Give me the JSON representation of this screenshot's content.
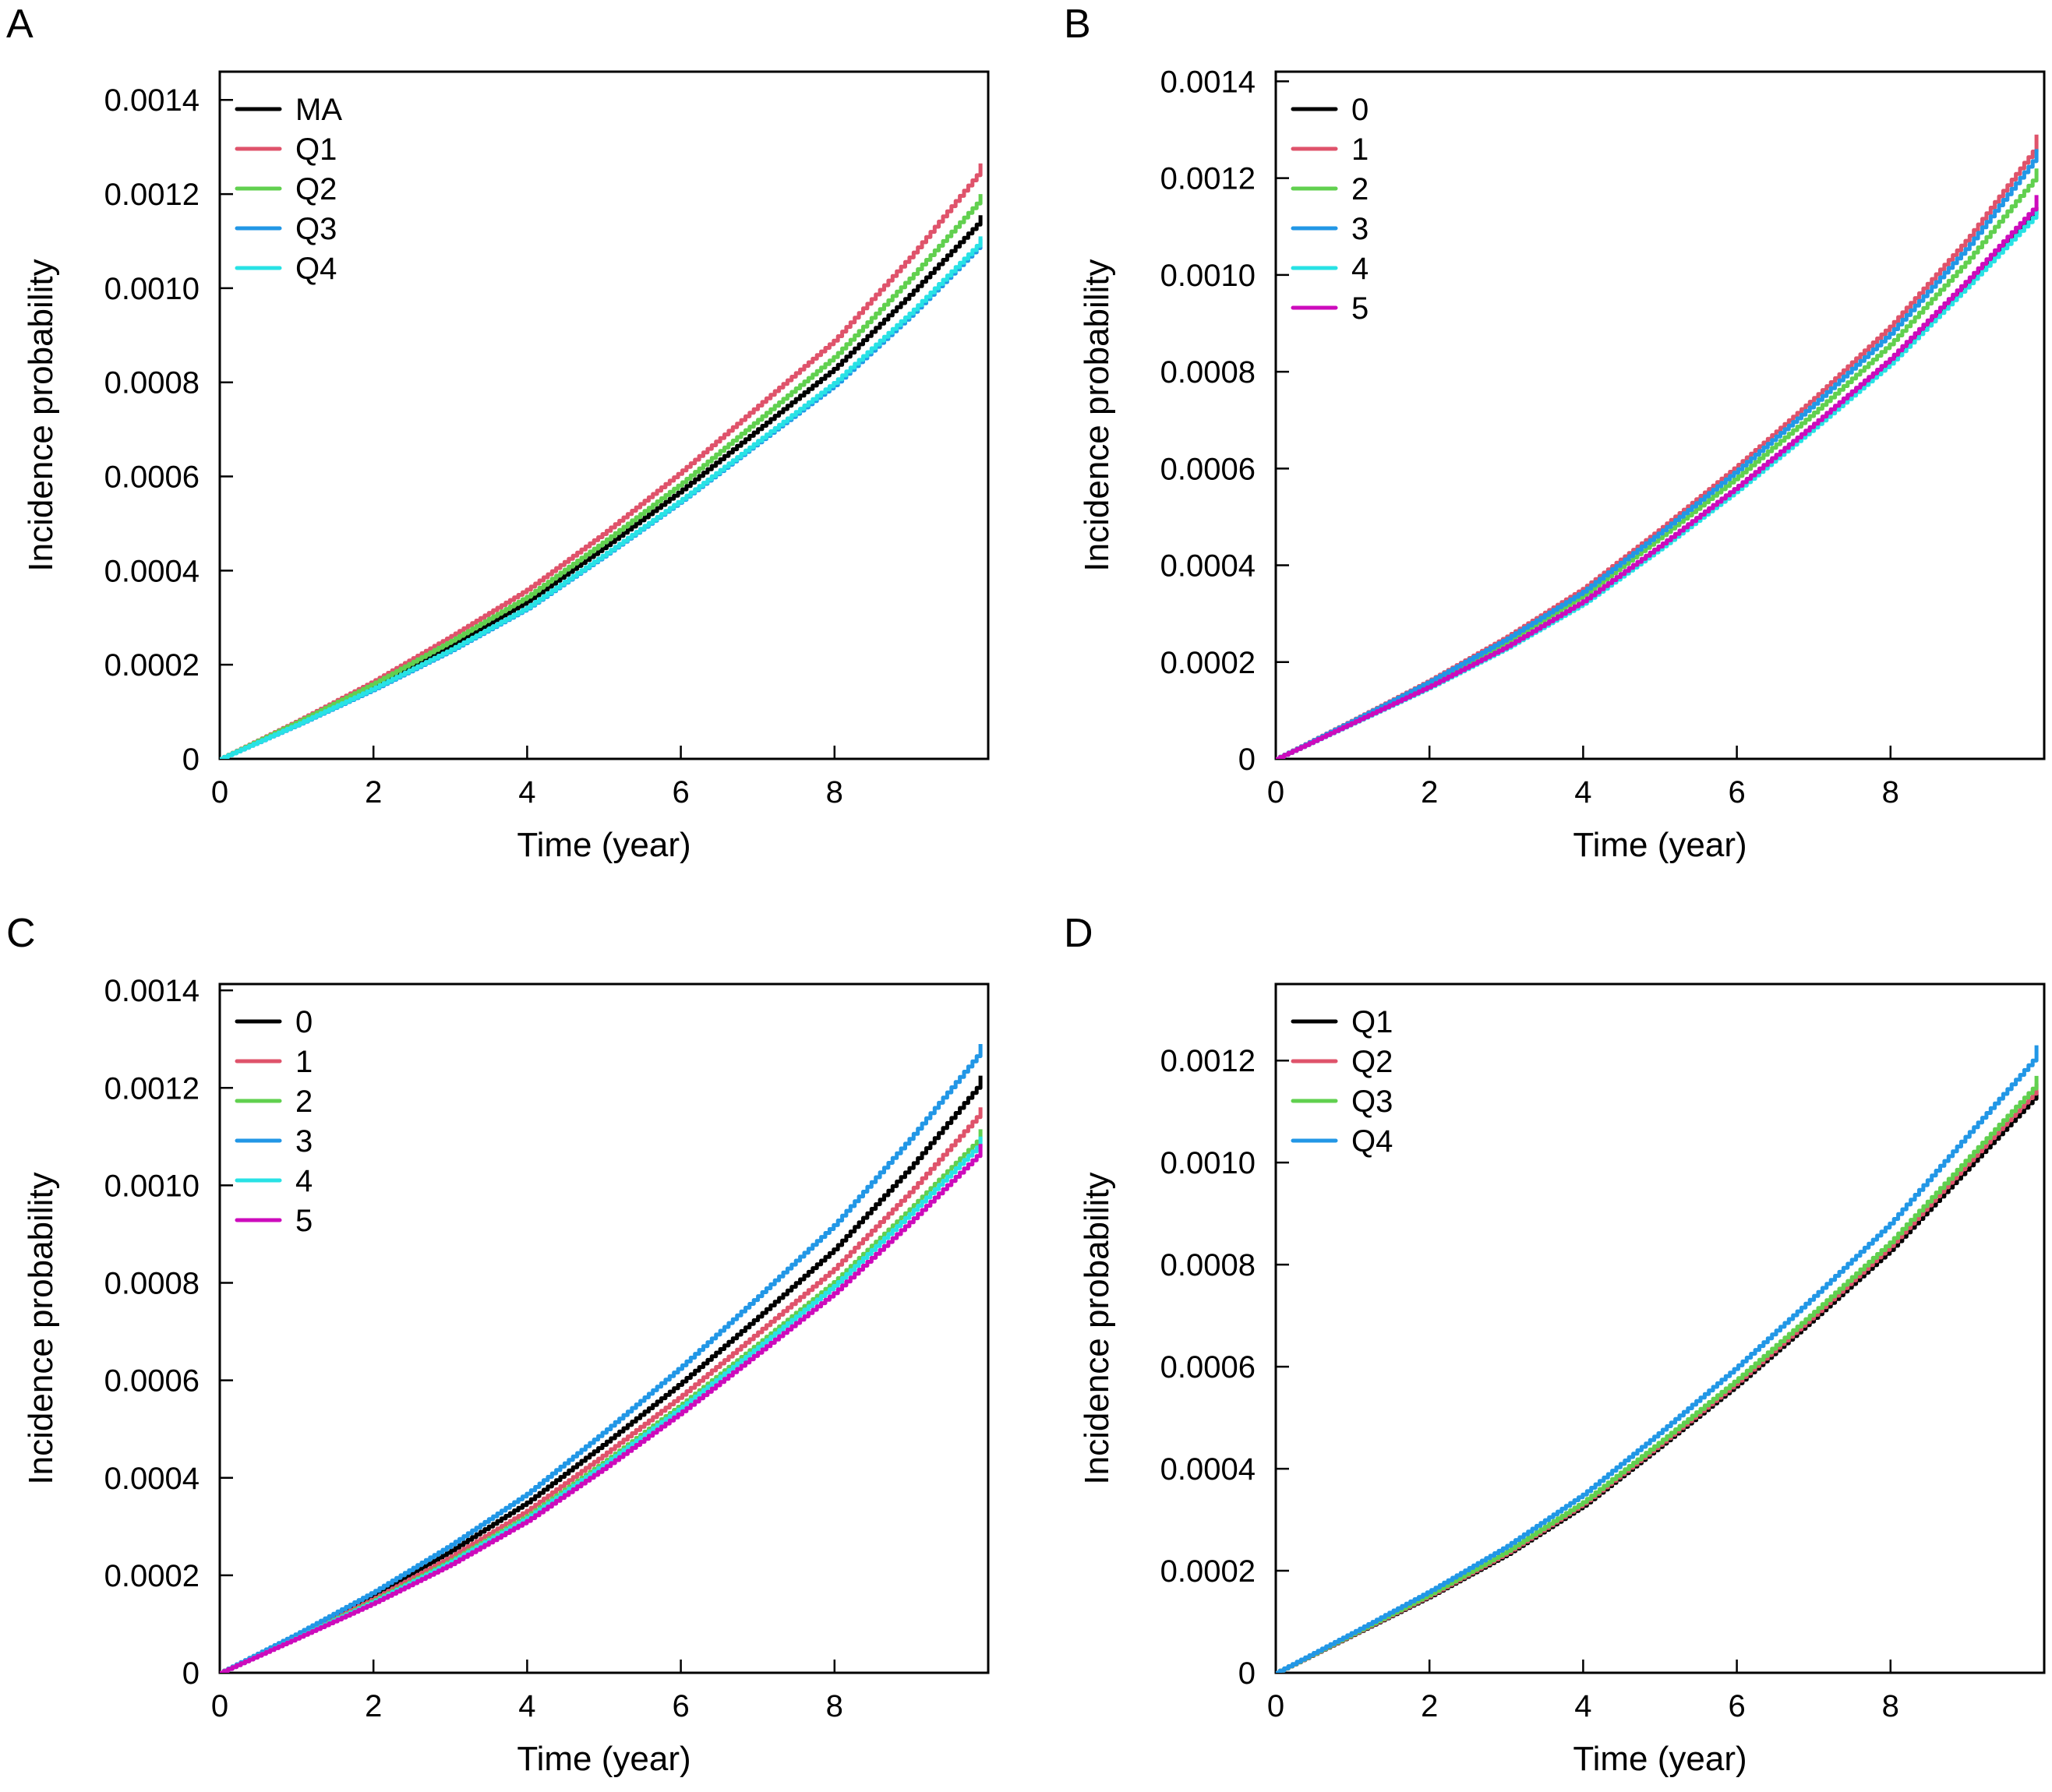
{
  "figure": {
    "panels_count": 4
  },
  "chart_data": [
    {
      "type": "line",
      "panel_label": "A",
      "xlabel": "Time (year)",
      "ylabel": "Incidence probability",
      "xlim": [
        0,
        10
      ],
      "ylim": [
        0,
        0.00146
      ],
      "xticks": [
        0,
        2,
        4,
        6,
        8
      ],
      "xtick_labels": [
        "0",
        "2",
        "4",
        "6",
        "8"
      ],
      "yticks": [
        0,
        0.0002,
        0.0004,
        0.0006,
        0.0008,
        0.001,
        0.0012,
        0.0014
      ],
      "ytick_labels": [
        "0",
        "0.0002",
        "0.0004",
        "0.0006",
        "0.0008",
        "0.0010",
        "0.0012",
        "0.0014"
      ],
      "grid": false,
      "legend_position": "top-left",
      "x": [
        0,
        1,
        2,
        3,
        4,
        5,
        6,
        7,
        8,
        9,
        9.85,
        9.9
      ],
      "series": [
        {
          "name": "MA",
          "color": "#000000",
          "values": [
            0,
            7.5e-05,
            0.000155,
            0.00024,
            0.000335,
            0.00045,
            0.00057,
            0.0007,
            0.00083,
            0.00099,
            0.001135,
            0.001155
          ]
        },
        {
          "name": "Q1",
          "color": "#df536b",
          "values": [
            0,
            8e-05,
            0.000165,
            0.00026,
            0.00036,
            0.00048,
            0.00061,
            0.00075,
            0.00089,
            0.00107,
            0.00124,
            0.001265
          ]
        },
        {
          "name": "Q2",
          "color": "#61d04f",
          "values": [
            0,
            7.8e-05,
            0.00016,
            0.00025,
            0.000345,
            0.000462,
            0.000585,
            0.00072,
            0.000855,
            0.001025,
            0.00118,
            0.0012
          ]
        },
        {
          "name": "Q3",
          "color": "#2297e6",
          "values": [
            0,
            7.2e-05,
            0.000148,
            0.00023,
            0.00032,
            0.000432,
            0.000548,
            0.000672,
            0.000795,
            0.000945,
            0.001085,
            0.001105
          ]
        },
        {
          "name": "Q4",
          "color": "#28e2e5",
          "values": [
            0,
            7.3e-05,
            0.00015,
            0.000232,
            0.000322,
            0.000434,
            0.00055,
            0.000675,
            0.0008,
            0.00095,
            0.00109,
            0.00111
          ]
        }
      ]
    },
    {
      "type": "line",
      "panel_label": "B",
      "xlabel": "Time (year)",
      "ylabel": "Incidence probability",
      "xlim": [
        0,
        10
      ],
      "ylim": [
        0,
        0.00142
      ],
      "xticks": [
        0,
        2,
        4,
        6,
        8
      ],
      "xtick_labels": [
        "0",
        "2",
        "4",
        "6",
        "8"
      ],
      "yticks": [
        0,
        0.0002,
        0.0004,
        0.0006,
        0.0008,
        0.001,
        0.0012,
        0.0014
      ],
      "ytick_labels": [
        "0",
        "0.0002",
        "0.0004",
        "0.0006",
        "0.0008",
        "0.0010",
        "0.0012",
        "0.0014"
      ],
      "grid": false,
      "legend_position": "top-left",
      "x": [
        0,
        1,
        2,
        3,
        4,
        5,
        6,
        7,
        8,
        9,
        9.85,
        9.9
      ],
      "series": [
        {
          "name": "0",
          "color": "#000000",
          "values": [
            0,
            7.5e-05,
            0.00015,
            0.000232,
            0.000325,
            0.00044,
            0.00056,
            0.00069,
            0.000825,
            0.000985,
            0.001125,
            0.00114
          ]
        },
        {
          "name": "1",
          "color": "#df536b",
          "values": [
            0,
            8e-05,
            0.000162,
            0.000252,
            0.000352,
            0.000475,
            0.000605,
            0.000745,
            0.000895,
            0.001075,
            0.001255,
            0.00129
          ]
        },
        {
          "name": "2",
          "color": "#61d04f",
          "values": [
            0,
            7.8e-05,
            0.000156,
            0.000242,
            0.000338,
            0.000458,
            0.000582,
            0.000715,
            0.000858,
            0.00103,
            0.001195,
            0.00122
          ]
        },
        {
          "name": "3",
          "color": "#2297e6",
          "values": [
            0,
            7.9e-05,
            0.00016,
            0.000248,
            0.000346,
            0.000468,
            0.000596,
            0.000733,
            0.00088,
            0.001058,
            0.001235,
            0.00126
          ]
        },
        {
          "name": "4",
          "color": "#28e2e5",
          "values": [
            0,
            7.4e-05,
            0.000148,
            0.000229,
            0.000321,
            0.000435,
            0.000555,
            0.000684,
            0.000818,
            0.000978,
            0.001118,
            0.001135
          ]
        },
        {
          "name": "5",
          "color": "#cd0bbc",
          "values": [
            0,
            7.5e-05,
            0.00015,
            0.000232,
            0.000326,
            0.000441,
            0.000562,
            0.000692,
            0.000828,
            0.00099,
            0.001135,
            0.001165
          ]
        }
      ]
    },
    {
      "type": "line",
      "panel_label": "C",
      "xlabel": "Time (year)",
      "ylabel": "Incidence probability",
      "xlim": [
        0,
        10
      ],
      "ylim": [
        0,
        0.001413
      ],
      "xticks": [
        0,
        2,
        4,
        6,
        8
      ],
      "xtick_labels": [
        "0",
        "2",
        "4",
        "6",
        "8"
      ],
      "yticks": [
        0,
        0.0002,
        0.0004,
        0.0006,
        0.0008,
        0.001,
        0.0012,
        0.0014
      ],
      "ytick_labels": [
        "0",
        "0.0002",
        "0.0004",
        "0.0006",
        "0.0008",
        "0.0010",
        "0.0012",
        "0.0014"
      ],
      "grid": false,
      "legend_position": "top-left",
      "x": [
        0,
        1,
        2,
        3,
        4,
        5,
        6,
        7,
        8,
        9,
        9.85,
        9.9
      ],
      "series": [
        {
          "name": "0",
          "color": "#000000",
          "values": [
            0,
            7.8e-05,
            0.00016,
            0.00025,
            0.00035,
            0.00047,
            0.000595,
            0.00073,
            0.00087,
            0.00104,
            0.0012,
            0.001225
          ]
        },
        {
          "name": "1",
          "color": "#df536b",
          "values": [
            0,
            7.5e-05,
            0.000152,
            0.000238,
            0.000333,
            0.000448,
            0.000568,
            0.000698,
            0.00083,
            0.00099,
            0.00114,
            0.00116
          ]
        },
        {
          "name": "2",
          "color": "#61d04f",
          "values": [
            0,
            7.3e-05,
            0.000148,
            0.00023,
            0.000322,
            0.000433,
            0.00055,
            0.000675,
            0.000803,
            0.000955,
            0.00109,
            0.001115
          ]
        },
        {
          "name": "3",
          "color": "#2297e6",
          "values": [
            0,
            8e-05,
            0.000166,
            0.000262,
            0.000368,
            0.000495,
            0.000628,
            0.000772,
            0.00092,
            0.0011,
            0.001265,
            0.00129
          ]
        },
        {
          "name": "4",
          "color": "#28e2e5",
          "values": [
            0,
            7.2e-05,
            0.000146,
            0.000227,
            0.000318,
            0.000428,
            0.000544,
            0.000668,
            0.000795,
            0.000945,
            0.001078,
            0.0011
          ]
        },
        {
          "name": "5",
          "color": "#cd0bbc",
          "values": [
            0,
            7.1e-05,
            0.000143,
            0.000222,
            0.000312,
            0.00042,
            0.000534,
            0.000656,
            0.00078,
            0.000928,
            0.00106,
            0.001085
          ]
        }
      ]
    },
    {
      "type": "line",
      "panel_label": "D",
      "xlabel": "Time (year)",
      "ylabel": "Incidence probability",
      "xlim": [
        0,
        10
      ],
      "ylim": [
        0,
        0.00135
      ],
      "xticks": [
        0,
        2,
        4,
        6,
        8
      ],
      "xtick_labels": [
        "0",
        "2",
        "4",
        "6",
        "8"
      ],
      "yticks": [
        0,
        0.0002,
        0.0004,
        0.0006,
        0.0008,
        0.001,
        0.0012
      ],
      "ytick_labels": [
        "0",
        "0.0002",
        "0.0004",
        "0.0006",
        "0.0008",
        "0.0010",
        "0.0012"
      ],
      "grid": false,
      "legend_position": "top-left",
      "x": [
        0,
        1,
        2,
        3,
        4,
        5,
        6,
        7,
        8,
        9,
        9.85,
        9.9
      ],
      "series": [
        {
          "name": "Q1",
          "color": "#000000",
          "values": [
            0,
            7.5e-05,
            0.00015,
            0.000232,
            0.000328,
            0.000445,
            0.000565,
            0.000695,
            0.00083,
            0.00099,
            0.001125,
            0.00114
          ]
        },
        {
          "name": "Q2",
          "color": "#df536b",
          "values": [
            0,
            7.6e-05,
            0.000152,
            0.000235,
            0.000332,
            0.000449,
            0.00057,
            0.000701,
            0.000838,
            0.001,
            0.001135,
            0.001155
          ]
        },
        {
          "name": "Q3",
          "color": "#61d04f",
          "values": [
            0,
            7.7e-05,
            0.000154,
            0.000238,
            0.000335,
            0.000453,
            0.000575,
            0.000707,
            0.000845,
            0.001008,
            0.001145,
            0.00117
          ]
        },
        {
          "name": "Q4",
          "color": "#2297e6",
          "values": [
            0,
            7.9e-05,
            0.00016,
            0.000248,
            0.00035,
            0.000472,
            0.0006,
            0.000738,
            0.000882,
            0.001055,
            0.0012,
            0.00123
          ]
        }
      ]
    }
  ]
}
